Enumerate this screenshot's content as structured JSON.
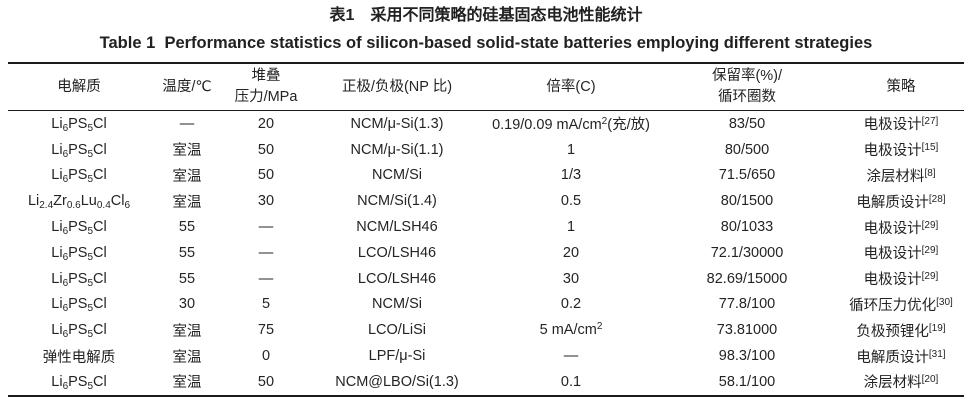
{
  "page": {
    "title_cn": "表1　采用不同策略的硅基固态电池性能统计",
    "title_en": "Table 1  Performance statistics of silicon-based solid-state batteries employing different strategies"
  },
  "colors": {
    "background": "#ffffff",
    "text": "#212121",
    "rule": "#1a1a1a"
  },
  "table": {
    "columns": [
      {
        "id": "electrolyte",
        "label": "电解质"
      },
      {
        "id": "temperature",
        "label": "温度/℃"
      },
      {
        "id": "stack-pressure",
        "label": "堆叠\n压力/MPa"
      },
      {
        "id": "cathode-anode-np",
        "label": "正极/负极(NP 比)"
      },
      {
        "id": "rate-c",
        "label": "倍率(C)"
      },
      {
        "id": "retention-cycles",
        "label": "保留率(%)/\n循环圈数"
      },
      {
        "id": "strategy",
        "label": "策略"
      }
    ],
    "rows": [
      [
        "Li~6~PS~5~Cl",
        "—",
        "20",
        "NCM/μ-Si(1.3)",
        "0.19/0.09 mA/cm^2^(充/放)",
        "83/50",
        "电极设计^[27]^"
      ],
      [
        "Li~6~PS~5~Cl",
        "室温",
        "50",
        "NCM/μ-Si(1.1)",
        "1",
        "80/500",
        "电极设计^[15]^"
      ],
      [
        "Li~6~PS~5~Cl",
        "室温",
        "50",
        "NCM/Si",
        "1/3",
        "71.5/650",
        "涂层材料^[8]^"
      ],
      [
        "Li~2.4~Zr~0.6~Lu~0.4~Cl~6~",
        "室温",
        "30",
        "NCM/Si(1.4)",
        "0.5",
        "80/1500",
        "电解质设计^[28]^"
      ],
      [
        "Li~6~PS~5~Cl",
        "55",
        "—",
        "NCM/LSH46",
        "1",
        "80/1033",
        "电极设计^[29]^"
      ],
      [
        "Li~6~PS~5~Cl",
        "55",
        "—",
        "LCO/LSH46",
        "20",
        "72.1/30000",
        "电极设计^[29]^"
      ],
      [
        "Li~6~PS~5~Cl",
        "55",
        "—",
        "LCO/LSH46",
        "30",
        "82.69/15000",
        "电极设计^[29]^"
      ],
      [
        "Li~6~PS~5~Cl",
        "30",
        "5",
        "NCM/Si",
        "0.2",
        "77.8/100",
        "循环压力优化^[30]^"
      ],
      [
        "Li~6~PS~5~Cl",
        "室温",
        "75",
        "LCO/LiSi",
        "5 mA/cm^2^",
        "73.81000",
        "负极预锂化^[19]^"
      ],
      [
        "弹性电解质",
        "室温",
        "0",
        "LPF/μ-Si",
        "—",
        "98.3/100",
        "电解质设计^[31]^"
      ],
      [
        "Li~6~PS~5~Cl",
        "室温",
        "50",
        "NCM@LBO/Si(1.3)",
        "0.1",
        "58.1/100",
        "涂层材料^[20]^"
      ]
    ]
  }
}
